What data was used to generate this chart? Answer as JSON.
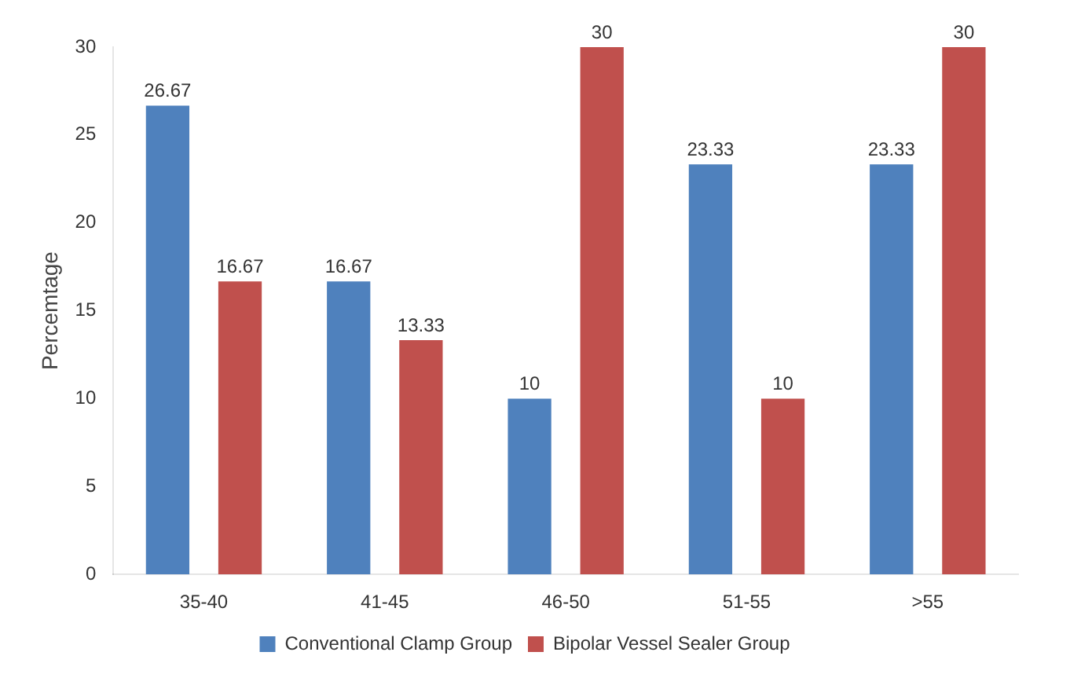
{
  "chart_data": {
    "type": "bar",
    "ylabel": "Percemtage",
    "categories": [
      "35-40",
      "41-45",
      "46-50",
      "51-55",
      ">55"
    ],
    "series": [
      {
        "name": "Conventional Clamp Group",
        "color": "#4f81bd",
        "values": [
          26.67,
          16.67,
          10,
          23.33,
          23.33
        ]
      },
      {
        "name": "Bipolar Vessel Sealer Group",
        "color": "#c0504d",
        "values": [
          16.67,
          13.33,
          30,
          10,
          30
        ]
      }
    ],
    "ylim": [
      0,
      30
    ],
    "yticks": [
      0,
      5,
      10,
      15,
      20,
      25,
      30
    ],
    "grid": false,
    "legend": "bottom",
    "data_labels": true
  }
}
